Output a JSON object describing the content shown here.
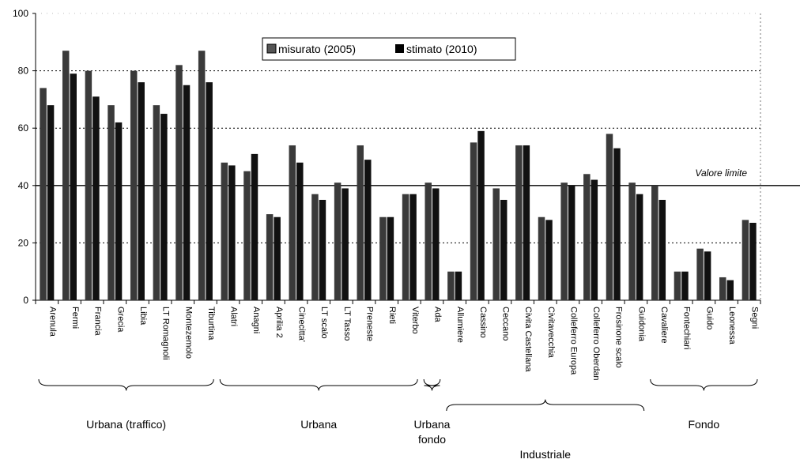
{
  "chart_data": {
    "type": "bar",
    "ylim": [
      0,
      100
    ],
    "yticks": [
      0,
      20,
      40,
      60,
      80,
      100
    ],
    "grid_lines": [
      20,
      60,
      80
    ],
    "limit_value": 40,
    "limit_label": "Valore limite",
    "legend_position": "top-center",
    "colors": {
      "misurato": "#3a3a3a",
      "stimato": "#111111"
    },
    "categories": [
      "Arenula",
      "Fermi",
      "Francia",
      "Grecia",
      "Libia",
      "LT Romagnoli",
      "Montezemolo",
      "Tiburtina",
      "Alatri",
      "Anagni",
      "Aprilia 2",
      "Cinecitta'",
      "LT scalo",
      "LT Tasso",
      "Preneste",
      "Rieti",
      "Viterbo",
      "Ada",
      "Allumiere",
      "Cassino",
      "Ceccano",
      "Civita Castellana",
      "Civitavecchia",
      "Colleferro Europa",
      "Colleferro Oberdan",
      "Frosinone scalo",
      "Guidonia",
      "Cavaliere",
      "Fontechiari",
      "Guido",
      "Leonessa",
      "Segni"
    ],
    "series": [
      {
        "name": "misurato (2005)",
        "values": [
          74,
          87,
          80,
          68,
          80,
          68,
          82,
          87,
          48,
          45,
          30,
          54,
          37,
          41,
          54,
          29,
          37,
          41,
          10,
          55,
          39,
          54,
          29,
          41,
          44,
          58,
          41,
          40,
          10,
          18,
          8,
          28
        ]
      },
      {
        "name": "stimato (2010)",
        "values": [
          68,
          79,
          71,
          62,
          76,
          65,
          75,
          76,
          47,
          51,
          29,
          48,
          35,
          39,
          49,
          29,
          37,
          39,
          10,
          59,
          35,
          54,
          28,
          40,
          42,
          53,
          37,
          35,
          10,
          17,
          7,
          27
        ]
      }
    ],
    "groups": [
      {
        "label": "Urbana (traffico)",
        "from": 0,
        "to": 7
      },
      {
        "label": "Urbana",
        "from": 8,
        "to": 16
      },
      {
        "label": "Urbana fondo",
        "from": 17,
        "to": 17
      },
      {
        "label": "Industriale",
        "from": 18,
        "to": 26
      },
      {
        "label": "Fondo",
        "from": 27,
        "to": 31
      }
    ]
  }
}
